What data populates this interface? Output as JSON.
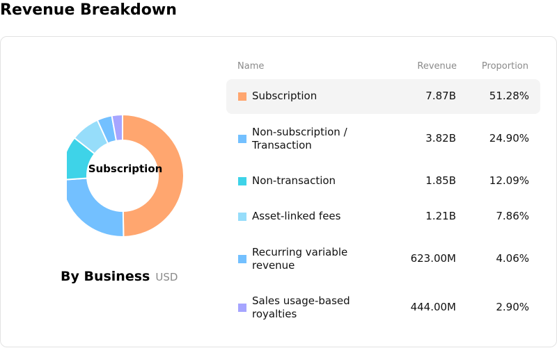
{
  "page": {
    "title": "Revenue Breakdown"
  },
  "chart": {
    "center_label": "Subscription",
    "title": "By Business",
    "unit": "USD"
  },
  "table": {
    "headers": {
      "name": "Name",
      "revenue": "Revenue",
      "proportion": "Proportion"
    },
    "rows": [
      {
        "name": "Subscription",
        "revenue": "7.87B",
        "proportion": "51.28%",
        "color": "#FFA66F"
      },
      {
        "name": "Non-subscription / Transaction",
        "revenue": "3.82B",
        "proportion": "24.90%",
        "color": "#73C0FF"
      },
      {
        "name": "Non-transaction",
        "revenue": "1.85B",
        "proportion": "12.09%",
        "color": "#3ED3E8"
      },
      {
        "name": "Asset-linked fees",
        "revenue": "1.21B",
        "proportion": "7.86%",
        "color": "#96DDFA"
      },
      {
        "name": "Recurring variable revenue",
        "revenue": "623.00M",
        "proportion": "4.06%",
        "color": "#73C0FF"
      },
      {
        "name": "Sales usage-based royalties",
        "revenue": "444.00M",
        "proportion": "2.90%",
        "color": "#A6A5FF"
      }
    ]
  },
  "chart_data": {
    "type": "pie",
    "categories": [
      "Subscription",
      "Non-subscription / Transaction",
      "Non-transaction",
      "Asset-linked fees",
      "Recurring variable revenue",
      "Sales usage-based royalties"
    ],
    "values": [
      51.28,
      24.9,
      12.09,
      7.86,
      4.06,
      2.9
    ],
    "title": "By Business"
  }
}
